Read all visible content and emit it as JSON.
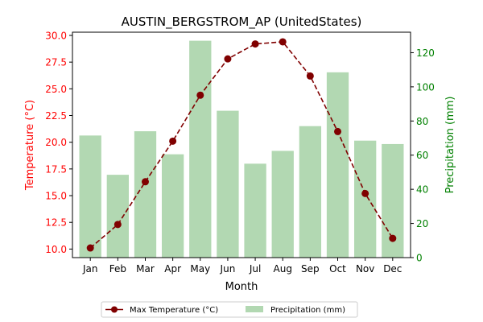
{
  "chart_data": {
    "type": "bar+line",
    "title": "AUSTIN_BERGSTROM_AP (UnitedStates)",
    "xlabel": "Month",
    "ylabel_left": "Temperature (°C)",
    "ylabel_right": "Precipitation (mm)",
    "categories": [
      "Jan",
      "Feb",
      "Mar",
      "Apr",
      "May",
      "Jun",
      "Jul",
      "Aug",
      "Sep",
      "Oct",
      "Nov",
      "Dec"
    ],
    "ylim_left": [
      9.2,
      30.3
    ],
    "ylim_right": [
      0,
      132
    ],
    "yticks_left": [
      "10.0",
      "12.5",
      "15.0",
      "17.5",
      "20.0",
      "22.5",
      "25.0",
      "27.5",
      "30.0"
    ],
    "yticks_right": [
      "0",
      "20",
      "40",
      "60",
      "80",
      "100",
      "120"
    ],
    "grid": false,
    "legend_position": "bottom-center",
    "series": [
      {
        "name": "Max Temperature (°C)",
        "kind": "line",
        "axis": "left",
        "color": "#800000",
        "values": [
          10.1,
          12.3,
          16.3,
          20.1,
          24.4,
          27.8,
          29.2,
          29.4,
          26.2,
          21.0,
          15.2,
          11.0
        ]
      },
      {
        "name": "Precipitation (mm)",
        "kind": "bar",
        "axis": "right",
        "color": "#b2d8b2",
        "values": [
          71.5,
          48.5,
          74,
          60.5,
          127,
          86,
          55,
          62.5,
          77,
          108.5,
          68.5,
          66.5
        ]
      }
    ],
    "colors": {
      "left_axis": "#ff0000",
      "right_axis": "#008000"
    }
  }
}
